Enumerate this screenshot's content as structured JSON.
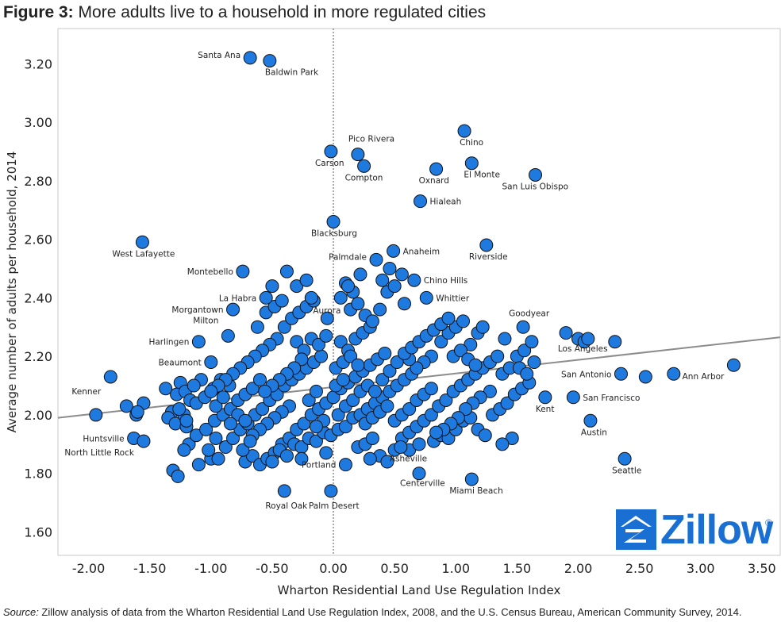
{
  "title_bold": "Figure 3:",
  "title_rest": " More adults live to a household in more regulated cities",
  "source_label": "Source:",
  "source_text": " Zillow analysis of data from the Wharton Residential Land Use Regulation Index, 2008, and the U.S. Census Bureau, American Community Survey, 2014.",
  "logo": {
    "text": "Zillow",
    "reg": "®",
    "icon": "zillow-house-icon",
    "color": "#1a6fd3"
  },
  "chart_data": {
    "type": "scatter",
    "xlabel": "Wharton Residential Land Use Regulation Index",
    "ylabel": "Average number of adults per household, 2014",
    "xlim": [
      -2.25,
      3.65
    ],
    "ylim": [
      1.52,
      3.32
    ],
    "x_ticks": [
      "-2.00",
      "-1.50",
      "-1.00",
      "-0.50",
      "0.00",
      "0.50",
      "1.00",
      "1.50",
      "2.00",
      "2.50",
      "3.00",
      "3.50"
    ],
    "y_ticks": [
      "1.60",
      "1.80",
      "2.00",
      "2.20",
      "2.40",
      "2.60",
      "2.80",
      "3.00",
      "3.20"
    ],
    "grid": false,
    "zero_line": true,
    "marker_color": "#1f7ae0",
    "trend_color": "#8c8c8c",
    "trendline": {
      "x": [
        -2.25,
        3.65
      ],
      "y": [
        1.99,
        2.265
      ]
    },
    "labeled_points": [
      {
        "name": "Santa Ana",
        "x": -0.68,
        "y": 3.22
      },
      {
        "name": "Baldwin Park",
        "x": -0.52,
        "y": 3.21
      },
      {
        "name": "Pico Rivera",
        "x": 0.2,
        "y": 2.89
      },
      {
        "name": "Carson",
        "x": -0.02,
        "y": 2.9
      },
      {
        "name": "Compton",
        "x": 0.25,
        "y": 2.85
      },
      {
        "name": "Chino",
        "x": 1.07,
        "y": 2.97
      },
      {
        "name": "Oxnard",
        "x": 0.84,
        "y": 2.84
      },
      {
        "name": "El Monte",
        "x": 1.13,
        "y": 2.86
      },
      {
        "name": "San Luis Obispo",
        "x": 1.65,
        "y": 2.82
      },
      {
        "name": "Hialeah",
        "x": 0.71,
        "y": 2.73
      },
      {
        "name": "West Lafayette",
        "x": -1.56,
        "y": 2.59
      },
      {
        "name": "Blacksburg",
        "x": 0.0,
        "y": 2.66
      },
      {
        "name": "Anaheim",
        "x": 0.49,
        "y": 2.56
      },
      {
        "name": "Riverside",
        "x": 1.25,
        "y": 2.58
      },
      {
        "name": "Palmdale",
        "x": 0.35,
        "y": 2.53
      },
      {
        "name": "Montebello",
        "x": -0.74,
        "y": 2.49
      },
      {
        "name": "Chino Hills",
        "x": 0.66,
        "y": 2.46
      },
      {
        "name": "La Habra",
        "x": -0.55,
        "y": 2.4
      },
      {
        "name": "Whittier",
        "x": 0.76,
        "y": 2.4
      },
      {
        "name": "Morgantown",
        "x": -0.82,
        "y": 2.36
      },
      {
        "name": "Aurora",
        "x": -0.05,
        "y": 2.33
      },
      {
        "name": "Goodyear",
        "x": 1.55,
        "y": 2.3
      },
      {
        "name": "Milton",
        "x": -0.86,
        "y": 2.27
      },
      {
        "name": "Harlingen",
        "x": -1.1,
        "y": 2.25
      },
      {
        "name": "Los Angeles",
        "x": 2.08,
        "y": 2.26
      },
      {
        "name": "Beaumont",
        "x": -1.0,
        "y": 2.18
      },
      {
        "name": "San Antonio",
        "x": 2.35,
        "y": 2.14
      },
      {
        "name": "Kenner",
        "x": -1.82,
        "y": 2.13
      },
      {
        "name": "Ann Arbor",
        "x": 3.27,
        "y": 2.17
      },
      {
        "name": "Kent",
        "x": 1.73,
        "y": 2.06
      },
      {
        "name": "San Francisco",
        "x": 1.96,
        "y": 2.06
      },
      {
        "name": "Austin",
        "x": 2.1,
        "y": 1.98
      },
      {
        "name": "Huntsville",
        "x": -1.63,
        "y": 1.92
      },
      {
        "name": "North Little Rock",
        "x": -1.55,
        "y": 1.91
      },
      {
        "name": "Asheville",
        "x": 0.55,
        "y": 1.89
      },
      {
        "name": "Portland",
        "x": 0.1,
        "y": 1.83
      },
      {
        "name": "Seattle",
        "x": 2.38,
        "y": 1.85
      },
      {
        "name": "Centerville",
        "x": 0.7,
        "y": 1.8
      },
      {
        "name": "Miami Beach",
        "x": 1.13,
        "y": 1.78
      },
      {
        "name": "Royal Oak",
        "x": -0.4,
        "y": 1.74
      },
      {
        "name": "Palm Desert",
        "x": -0.02,
        "y": 1.74
      }
    ],
    "other_points": [
      [
        -1.94,
        2.0
      ],
      [
        -1.69,
        2.03
      ],
      [
        -1.61,
        2.0
      ],
      [
        -1.55,
        2.04
      ],
      [
        -1.6,
        2.01
      ],
      [
        -1.37,
        2.09
      ],
      [
        -1.32,
        2.01
      ],
      [
        -1.25,
        2.11
      ],
      [
        -1.28,
        2.07
      ],
      [
        -1.21,
        2.08
      ],
      [
        -1.35,
        1.99
      ],
      [
        -1.29,
        1.97
      ],
      [
        -1.2,
        1.96
      ],
      [
        -1.22,
        2.0
      ],
      [
        -1.17,
        2.05
      ],
      [
        -1.12,
        2.04
      ],
      [
        -1.05,
        2.06
      ],
      [
        -0.98,
        2.09
      ],
      [
        -0.92,
        2.12
      ],
      [
        -0.85,
        2.1
      ],
      [
        -1.18,
        1.9
      ],
      [
        -1.12,
        1.93
      ],
      [
        -1.04,
        1.95
      ],
      [
        -0.97,
        1.98
      ],
      [
        -0.9,
        2.0
      ],
      [
        -0.84,
        2.02
      ],
      [
        -0.78,
        2.05
      ],
      [
        -0.72,
        2.07
      ],
      [
        -0.66,
        2.09
      ],
      [
        -0.6,
        2.12
      ],
      [
        -1.31,
        1.81
      ],
      [
        -1.27,
        1.79
      ],
      [
        -1.22,
        1.88
      ],
      [
        -1.1,
        1.83
      ],
      [
        -1.0,
        1.85
      ],
      [
        -0.94,
        1.85
      ],
      [
        -0.88,
        1.89
      ],
      [
        -0.82,
        1.92
      ],
      [
        -0.76,
        1.95
      ],
      [
        -0.7,
        1.97
      ],
      [
        -0.64,
        2.0
      ],
      [
        -0.58,
        2.02
      ],
      [
        -0.52,
        2.05
      ],
      [
        -0.46,
        2.07
      ],
      [
        -0.4,
        2.1
      ],
      [
        -0.34,
        2.12
      ],
      [
        -0.28,
        2.14
      ],
      [
        -0.22,
        2.16
      ],
      [
        -0.16,
        2.18
      ],
      [
        -0.1,
        2.2
      ],
      [
        -0.72,
        1.84
      ],
      [
        -0.66,
        1.86
      ],
      [
        -0.6,
        1.83
      ],
      [
        -0.54,
        1.85
      ],
      [
        -0.48,
        1.87
      ],
      [
        -0.42,
        1.9
      ],
      [
        -0.36,
        1.92
      ],
      [
        -0.3,
        1.95
      ],
      [
        -0.24,
        1.97
      ],
      [
        -0.18,
        2.0
      ],
      [
        -0.12,
        2.02
      ],
      [
        -0.06,
        2.04
      ],
      [
        0.0,
        2.06
      ],
      [
        0.06,
        2.09
      ],
      [
        0.12,
        2.11
      ],
      [
        0.18,
        2.13
      ],
      [
        0.24,
        2.15
      ],
      [
        0.3,
        2.17
      ],
      [
        0.36,
        2.19
      ],
      [
        0.42,
        2.21
      ],
      [
        -0.5,
        1.84
      ],
      [
        -0.44,
        1.88
      ],
      [
        -0.38,
        1.86
      ],
      [
        -0.32,
        1.9
      ],
      [
        -0.26,
        1.89
      ],
      [
        -0.2,
        1.92
      ],
      [
        -0.14,
        1.91
      ],
      [
        -0.08,
        1.94
      ],
      [
        -0.02,
        1.93
      ],
      [
        0.04,
        1.95
      ],
      [
        0.1,
        1.96
      ],
      [
        0.16,
        1.99
      ],
      [
        0.22,
        2.0
      ],
      [
        0.28,
        2.02
      ],
      [
        0.34,
        2.04
      ],
      [
        0.4,
        2.06
      ],
      [
        0.46,
        2.08
      ],
      [
        0.52,
        2.1
      ],
      [
        0.58,
        2.12
      ],
      [
        0.64,
        2.14
      ],
      [
        0.2,
        1.89
      ],
      [
        0.26,
        1.9
      ],
      [
        0.32,
        1.92
      ],
      [
        0.38,
        1.86
      ],
      [
        0.44,
        1.84
      ],
      [
        0.5,
        1.88
      ],
      [
        0.56,
        1.92
      ],
      [
        0.62,
        1.94
      ],
      [
        0.68,
        1.96
      ],
      [
        0.74,
        1.98
      ],
      [
        0.8,
        2.0
      ],
      [
        0.86,
        2.03
      ],
      [
        0.92,
        2.05
      ],
      [
        0.98,
        2.08
      ],
      [
        1.04,
        2.1
      ],
      [
        1.1,
        2.12
      ],
      [
        1.16,
        2.14
      ],
      [
        1.22,
        2.16
      ],
      [
        1.28,
        2.18
      ],
      [
        1.34,
        2.2
      ],
      [
        0.82,
        1.91
      ],
      [
        0.88,
        1.93
      ],
      [
        0.94,
        1.92
      ],
      [
        1.0,
        1.95
      ],
      [
        1.06,
        1.98
      ],
      [
        1.12,
        1.99
      ],
      [
        1.18,
        1.95
      ],
      [
        1.24,
        1.93
      ],
      [
        1.3,
        2.0
      ],
      [
        1.36,
        2.02
      ],
      [
        1.42,
        2.04
      ],
      [
        1.48,
        2.07
      ],
      [
        1.54,
        2.09
      ],
      [
        1.6,
        2.11
      ],
      [
        1.38,
        2.14
      ],
      [
        1.44,
        2.16
      ],
      [
        1.5,
        2.2
      ],
      [
        1.56,
        2.22
      ],
      [
        1.62,
        2.25
      ],
      [
        1.4,
        2.26
      ],
      [
        1.46,
        1.92
      ],
      [
        1.38,
        1.9
      ],
      [
        1.28,
        2.08
      ],
      [
        1.2,
        2.06
      ],
      [
        1.14,
        2.04
      ],
      [
        1.08,
        2.02
      ],
      [
        1.02,
        1.99
      ],
      [
        0.96,
        1.97
      ],
      [
        0.9,
        1.95
      ],
      [
        0.84,
        1.94
      ],
      [
        -0.3,
        2.25
      ],
      [
        -0.24,
        2.22
      ],
      [
        -0.18,
        2.26
      ],
      [
        -0.12,
        2.24
      ],
      [
        -0.06,
        2.27
      ],
      [
        0.06,
        2.25
      ],
      [
        0.12,
        2.22
      ],
      [
        0.18,
        2.26
      ],
      [
        0.24,
        2.28
      ],
      [
        0.3,
        2.3
      ],
      [
        -0.4,
        2.3
      ],
      [
        -0.34,
        2.33
      ],
      [
        -0.28,
        2.35
      ],
      [
        -0.22,
        2.37
      ],
      [
        -0.16,
        2.39
      ],
      [
        0.14,
        2.36
      ],
      [
        0.2,
        2.38
      ],
      [
        0.26,
        2.34
      ],
      [
        0.32,
        2.32
      ],
      [
        0.38,
        2.36
      ],
      [
        -0.46,
        2.26
      ],
      [
        -0.52,
        2.24
      ],
      [
        -0.58,
        2.22
      ],
      [
        -0.64,
        2.2
      ],
      [
        -0.7,
        2.18
      ],
      [
        -0.76,
        2.16
      ],
      [
        -0.82,
        2.14
      ],
      [
        -0.88,
        2.12
      ],
      [
        -0.94,
        2.1
      ],
      [
        -1.0,
        2.08
      ],
      [
        -0.3,
        2.44
      ],
      [
        -0.22,
        2.46
      ],
      [
        0.1,
        2.45
      ],
      [
        0.16,
        2.42
      ],
      [
        0.22,
        2.48
      ],
      [
        0.44,
        2.42
      ],
      [
        0.5,
        2.44
      ],
      [
        0.56,
        2.48
      ],
      [
        -0.5,
        2.44
      ],
      [
        -0.38,
        2.49
      ],
      [
        -0.55,
        2.35
      ],
      [
        -0.48,
        2.37
      ],
      [
        -0.62,
        2.3
      ],
      [
        -0.42,
        2.39
      ],
      [
        0.06,
        2.4
      ],
      [
        0.12,
        2.44
      ],
      [
        0.4,
        2.46
      ],
      [
        0.46,
        2.5
      ],
      [
        0.58,
        2.38
      ],
      [
        -0.18,
        2.4
      ],
      [
        0.88,
        2.25
      ],
      [
        0.94,
        2.28
      ],
      [
        1.0,
        2.3
      ],
      [
        1.06,
        2.32
      ],
      [
        1.12,
        2.24
      ],
      [
        1.18,
        2.28
      ],
      [
        0.8,
        2.2
      ],
      [
        0.74,
        2.18
      ],
      [
        0.68,
        2.16
      ],
      [
        0.62,
        2.19
      ],
      [
        -0.2,
        2.05
      ],
      [
        -0.14,
        2.08
      ],
      [
        0.02,
        2.1
      ],
      [
        0.08,
        2.12
      ],
      [
        -0.36,
        2.03
      ],
      [
        -0.42,
        2.01
      ],
      [
        -0.48,
        1.99
      ],
      [
        -0.54,
        1.97
      ],
      [
        -0.6,
        1.95
      ],
      [
        -0.66,
        1.93
      ],
      [
        0.26,
        1.97
      ],
      [
        0.32,
        1.99
      ],
      [
        0.38,
        2.01
      ],
      [
        0.44,
        2.03
      ],
      [
        0.5,
        1.98
      ],
      [
        0.56,
        2.0
      ],
      [
        0.62,
        2.02
      ],
      [
        0.68,
        2.05
      ],
      [
        0.74,
        2.07
      ],
      [
        0.8,
        2.09
      ],
      [
        -1.08,
        2.12
      ],
      [
        -1.14,
        2.1
      ],
      [
        -1.2,
        1.98
      ],
      [
        -1.26,
        2.02
      ],
      [
        -0.96,
        2.03
      ],
      [
        -0.9,
        2.06
      ],
      [
        -0.78,
        2.0
      ],
      [
        -0.72,
        1.98
      ],
      [
        -0.84,
        1.97
      ],
      [
        -0.96,
        1.92
      ],
      [
        0.04,
        2.0
      ],
      [
        0.1,
        2.03
      ],
      [
        0.16,
        2.05
      ],
      [
        -0.08,
        1.98
      ],
      [
        -0.14,
        1.96
      ],
      [
        0.22,
        2.08
      ],
      [
        0.28,
        2.1
      ],
      [
        0.34,
        2.08
      ],
      [
        0.4,
        2.12
      ],
      [
        0.46,
        2.15
      ],
      [
        0.02,
        2.16
      ],
      [
        0.08,
        2.18
      ],
      [
        0.14,
        2.2
      ],
      [
        0.2,
        2.17
      ],
      [
        -0.26,
        2.19
      ],
      [
        -0.32,
        2.16
      ],
      [
        -0.38,
        2.14
      ],
      [
        -0.44,
        2.12
      ],
      [
        -0.5,
        2.1
      ],
      [
        -0.56,
        2.08
      ],
      [
        0.52,
        2.18
      ],
      [
        0.58,
        2.21
      ],
      [
        0.64,
        2.23
      ],
      [
        0.7,
        2.25
      ],
      [
        0.76,
        2.27
      ],
      [
        0.82,
        2.29
      ],
      [
        0.88,
        2.31
      ],
      [
        0.94,
        2.33
      ],
      [
        0.98,
        2.2
      ],
      [
        1.04,
        2.22
      ],
      [
        1.22,
        2.3
      ],
      [
        1.1,
        2.19
      ],
      [
        1.16,
        2.17
      ],
      [
        1.52,
        2.16
      ],
      [
        1.58,
        2.14
      ],
      [
        1.64,
        2.18
      ],
      [
        1.9,
        2.28
      ],
      [
        2.0,
        2.26
      ],
      [
        2.05,
        2.25
      ],
      [
        2.3,
        2.25
      ],
      [
        2.55,
        2.13
      ],
      [
        2.78,
        2.14
      ],
      [
        -1.02,
        1.88
      ],
      [
        -0.74,
        1.88
      ],
      [
        -0.68,
        1.91
      ],
      [
        -0.26,
        1.85
      ],
      [
        -0.06,
        1.87
      ],
      [
        0.3,
        1.85
      ],
      [
        0.62,
        1.88
      ],
      [
        0.7,
        1.9
      ]
    ]
  }
}
